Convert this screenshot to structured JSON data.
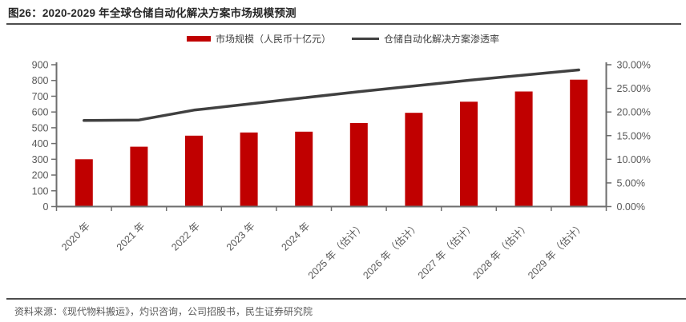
{
  "title": "图26：2020-2029 年全球仓储自动化解决方案市场规模预测",
  "source_note": "资料来源：《现代物料搬运》，灼识咨询，公司招股书，民生证券研究院",
  "legend": {
    "bar_label": "市场规模（人民币十亿元）",
    "line_label": "仓储自动化解决方案渗透率"
  },
  "colors": {
    "bar": "#c00000",
    "line": "#404040",
    "axis": "#6e6e6e",
    "tick_label": "#595959"
  },
  "chart_data": {
    "type": "bar",
    "subtype": "bar-line-combo",
    "title": "2020-2029 年全球仓储自动化解决方案市场规模预测",
    "categories": [
      "2020 年",
      "2021 年",
      "2022 年",
      "2023 年",
      "2024 年",
      "2025 年（估计）",
      "2026 年（估计）",
      "2027 年（估计）",
      "2028 年（估计）",
      "2029 年（估计）"
    ],
    "series": [
      {
        "name": "市场规模（人民币十亿元）",
        "type": "bar",
        "axis": "left",
        "values": [
          300,
          380,
          450,
          470,
          475,
          530,
          595,
          665,
          730,
          805
        ]
      },
      {
        "name": "仓储自动化解决方案渗透率",
        "type": "line",
        "axis": "right",
        "values": [
          18.2,
          18.3,
          20.4,
          21.7,
          23.0,
          24.3,
          25.5,
          26.7,
          27.8,
          28.9
        ]
      }
    ],
    "left_axis": {
      "min": 0,
      "max": 900,
      "step": 100,
      "tick_labels": [
        "0",
        "100",
        "200",
        "300",
        "400",
        "500",
        "600",
        "700",
        "800",
        "900"
      ]
    },
    "right_axis": {
      "min": 0,
      "max": 30,
      "step": 5,
      "tick_labels": [
        "0.00%",
        "5.00%",
        "10.00%",
        "15.00%",
        "20.00%",
        "25.00%",
        "30.00%"
      ]
    },
    "grid": "off",
    "legend_position": "top-center"
  }
}
